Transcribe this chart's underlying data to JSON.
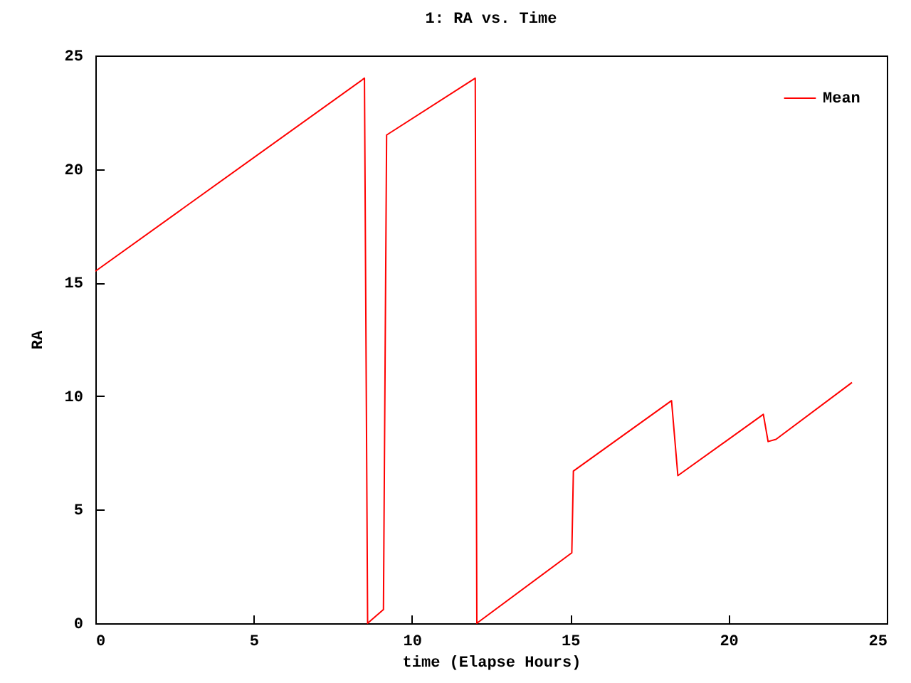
{
  "chart_data": {
    "type": "line",
    "title": "1: RA vs. Time",
    "xlabel": "time (Elapse Hours)",
    "ylabel": "RA",
    "x": [
      0,
      8.5,
      8.6,
      9.1,
      9.2,
      12.0,
      12.05,
      15.05,
      15.1,
      18.2,
      18.4,
      21.1,
      21.25,
      21.5,
      23.9
    ],
    "series": [
      {
        "name": "Mean",
        "color": "#ff0000",
        "values": [
          15.5,
          24,
          0,
          0.6,
          21.5,
          24,
          0,
          3.1,
          6.7,
          9.8,
          6.5,
          9.2,
          8.0,
          8.1,
          10.6
        ]
      }
    ],
    "xlim": [
      0,
      25
    ],
    "ylim": [
      0,
      25
    ],
    "xticks": [
      0,
      5,
      10,
      15,
      20,
      25
    ],
    "yticks": [
      0,
      5,
      10,
      15,
      20,
      25
    ],
    "grid": false,
    "legend": "top right",
    "marker": "none",
    "line_style": "solid"
  }
}
